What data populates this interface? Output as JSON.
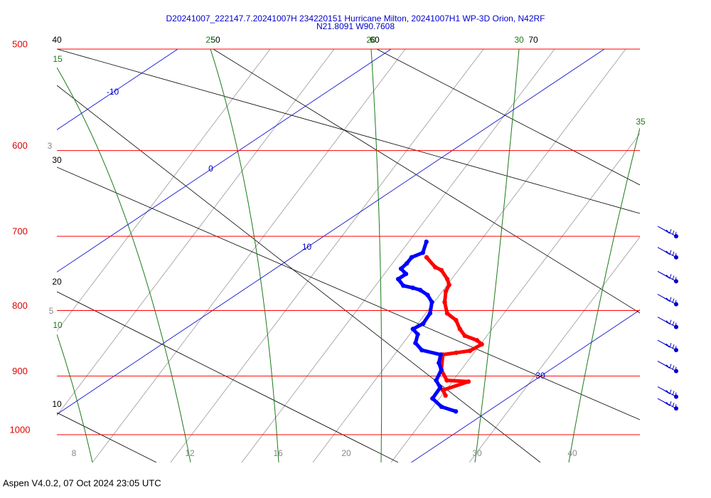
{
  "title": [
    "D20241007_222147.7.20241007H 234220151 Hurricane Milton, 20241007H1 WP-3D Orion, N42RF",
    "N21.8091 W90.7608"
  ],
  "footer": "Aspen V4.0.2, 07 Oct 2024  23:05 UTC",
  "chart_data": {
    "type": "skewt",
    "isobars": [
      500,
      600,
      700,
      800,
      900,
      1000
    ],
    "isotherms": [
      -10,
      0,
      10,
      30
    ],
    "dry_adiabat_labels": [
      40,
      30,
      20,
      10,
      50,
      60,
      70
    ],
    "moist_adiabat_labels": [
      15,
      10,
      25,
      20,
      30,
      35
    ],
    "mixing_ratio_labels": [
      3,
      5,
      8,
      12,
      16,
      20,
      30,
      40
    ],
    "series": [
      {
        "color": "#ff0000",
        "pressure": [
          727,
          740,
          744,
          756,
          764,
          773,
          788,
          804,
          814,
          827,
          837,
          844,
          850,
          860,
          863,
          866,
          890,
          907,
          909,
          923,
          932
        ],
        "values": [
          16.3,
          17.4,
          17.9,
          18.8,
          19.3,
          19.6,
          20.3,
          21.2,
          22.1,
          22.9,
          23.6,
          24.5,
          25.0,
          24.9,
          24.4,
          23.9,
          24.9,
          25.9,
          27.0,
          26.4,
          26.9
        ]
      },
      {
        "color": "#0000ff",
        "pressure": [
          707,
          721,
          727,
          735,
          742,
          749,
          756,
          765,
          768,
          771,
          778,
          788,
          804,
          819,
          827,
          835,
          848,
          859,
          866,
          879,
          890,
          907,
          919,
          937,
          951,
          959
        ],
        "values": [
          15.2,
          15.8,
          15.6,
          15.8,
          15.9,
          16.5,
          16.5,
          17.2,
          17.8,
          18.3,
          19.0,
          19.7,
          20.4,
          20.8,
          20.7,
          21.3,
          21.8,
          22.6,
          23.8,
          24.3,
          24.9,
          25.4,
          26.1,
          26.5,
          27.5,
          28.5
        ]
      }
    ],
    "wind_pressure": [
      700,
      727,
      759,
      791,
      824,
      859,
      892,
      934,
      954
    ]
  }
}
